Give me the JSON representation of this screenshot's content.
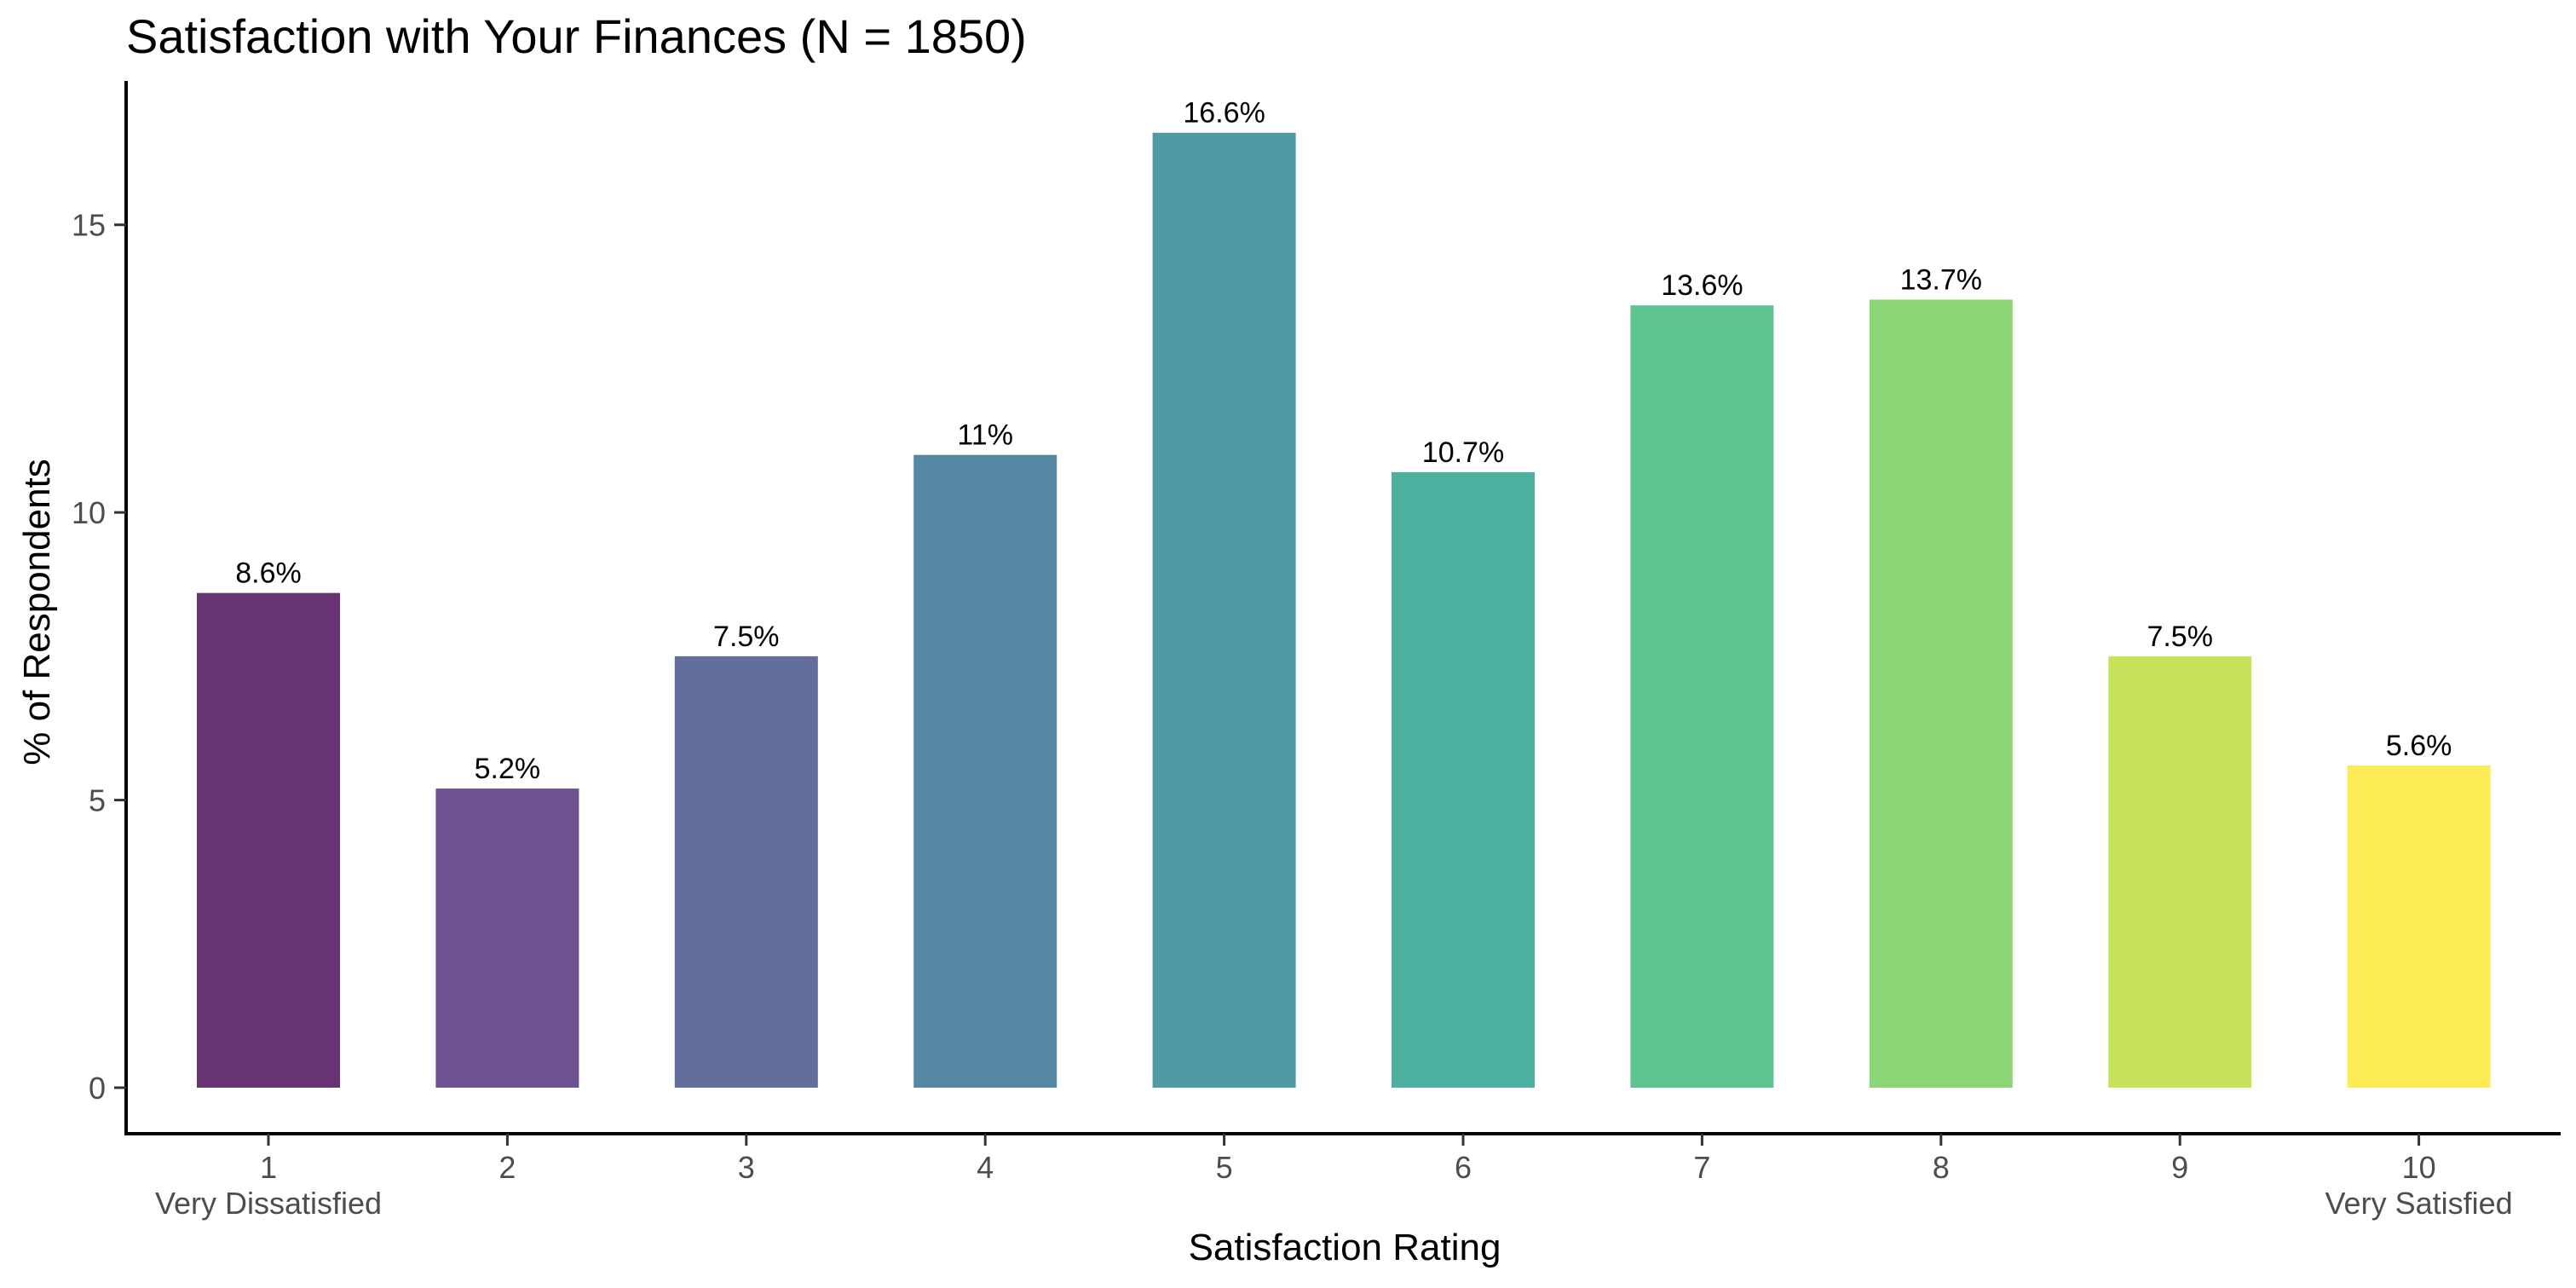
{
  "chart_data": {
    "type": "bar",
    "title": "Satisfaction with Your Finances (N = 1850)",
    "xlabel": "Satisfaction Rating",
    "ylabel": "% of Respondents",
    "categories": [
      "1",
      "2",
      "3",
      "4",
      "5",
      "6",
      "7",
      "8",
      "9",
      "10"
    ],
    "category_sublabels": [
      "Very Dissatisfied",
      "",
      "",
      "",
      "",
      "",
      "",
      "",
      "",
      "Very Satisfied"
    ],
    "values": [
      8.6,
      5.2,
      7.5,
      11.0,
      16.6,
      10.7,
      13.6,
      13.7,
      7.5,
      5.6
    ],
    "value_labels": [
      "8.6%",
      "5.2%",
      "7.5%",
      "11%",
      "16.6%",
      "10.7%",
      "13.6%",
      "13.7%",
      "7.5%",
      "5.6%"
    ],
    "colors": [
      "#683372",
      "#6d5491",
      "#636e9d",
      "#5788a3",
      "#509ba3",
      "#4cb09f",
      "#5dc490",
      "#8bd676",
      "#c6e35b",
      "#fceb55"
    ],
    "yticks": [
      0,
      5,
      10,
      15
    ],
    "ylim": [
      -0.8,
      17.5
    ],
    "grid": false,
    "legend": "none"
  }
}
